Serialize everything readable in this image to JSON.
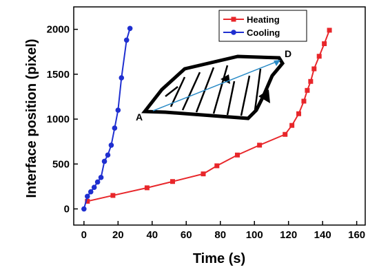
{
  "chart_data": {
    "type": "line",
    "x_label": "Time (s)",
    "y_label": "Interface position (pixel)",
    "xlim": [
      -6,
      165
    ],
    "ylim": [
      -180,
      2250
    ],
    "xticks": [
      0,
      20,
      40,
      60,
      80,
      100,
      120,
      140,
      160
    ],
    "yticks": [
      0,
      500,
      1000,
      1500,
      2000
    ],
    "legend": "top-right",
    "annotations": [
      "A",
      "D"
    ],
    "series": [
      {
        "name": "Heating",
        "color": "#e8262a",
        "marker": "square",
        "x": [
          2,
          17,
          37,
          52,
          70,
          78,
          90,
          103,
          118,
          122,
          126,
          129,
          131,
          133,
          135,
          138,
          141,
          144
        ],
        "values": [
          85,
          150,
          235,
          305,
          390,
          480,
          600,
          710,
          830,
          930,
          1060,
          1200,
          1320,
          1420,
          1560,
          1700,
          1840,
          1990
        ]
      },
      {
        "name": "Cooling",
        "color": "#1f2fd0",
        "marker": "circle",
        "x": [
          0,
          2,
          4,
          6,
          8,
          10,
          12,
          14,
          16,
          18,
          20,
          22,
          25,
          27
        ],
        "values": [
          0,
          140,
          190,
          240,
          300,
          350,
          530,
          600,
          710,
          900,
          1100,
          1460,
          1880,
          2010
        ]
      }
    ]
  }
}
